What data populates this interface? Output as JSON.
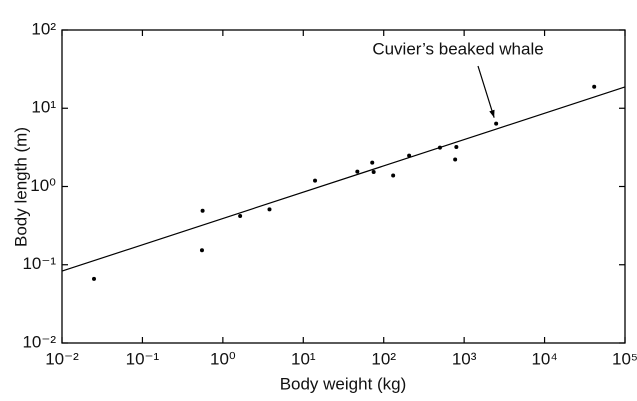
{
  "chart_data": {
    "type": "scatter",
    "xlabel": "Body weight (kg)",
    "ylabel": "Body length (m)",
    "xscale": "log",
    "yscale": "log",
    "xlim": [
      0.01,
      100000
    ],
    "ylim": [
      0.01,
      100
    ],
    "xticks": [
      {
        "value": 0.01,
        "label": "10⁻²"
      },
      {
        "value": 0.1,
        "label": "10⁻¹"
      },
      {
        "value": 1,
        "label": "10⁰"
      },
      {
        "value": 10,
        "label": "10¹"
      },
      {
        "value": 100,
        "label": "10²"
      },
      {
        "value": 1000,
        "label": "10³"
      },
      {
        "value": 10000,
        "label": "10⁴"
      },
      {
        "value": 100000,
        "label": "10⁵"
      }
    ],
    "yticks": [
      {
        "value": 0.01,
        "label": "10⁻²"
      },
      {
        "value": 0.1,
        "label": "10⁻¹"
      },
      {
        "value": 1,
        "label": "10⁰"
      },
      {
        "value": 10,
        "label": "10¹"
      },
      {
        "value": 100,
        "label": "10²"
      }
    ],
    "color": "#000000",
    "x": [
      0.025,
      0.55,
      0.56,
      1.64,
      3.8,
      14,
      47,
      72,
      75,
      131,
      207,
      500,
      773,
      800,
      2500,
      41400
    ],
    "y": [
      0.066,
      0.153,
      0.49,
      0.42,
      0.51,
      1.19,
      1.55,
      2.02,
      1.53,
      1.38,
      2.48,
      3.14,
      2.21,
      3.2,
      6.35,
      18.8
    ],
    "fit": {
      "x": [
        0.01,
        100000
      ],
      "y": [
        0.083,
        18.7
      ]
    },
    "annotation": {
      "text": "Cuvier’s beaked whale",
      "point": 14
    }
  }
}
